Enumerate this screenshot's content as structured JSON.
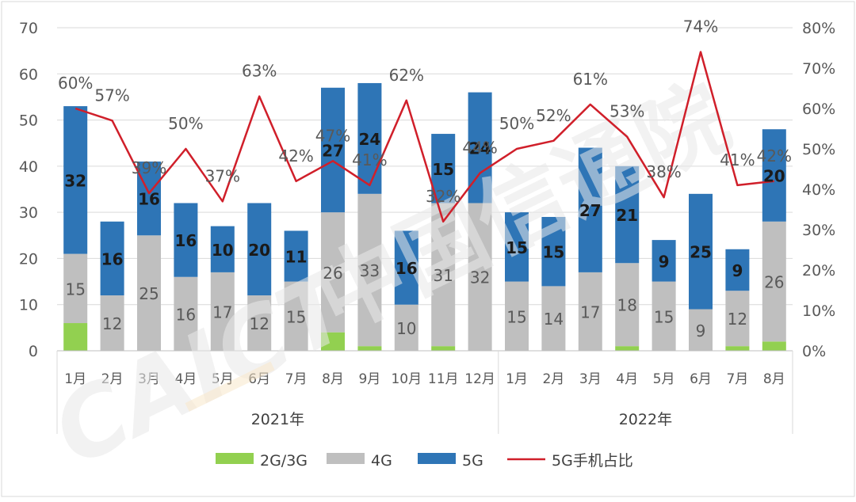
{
  "chart_data": {
    "type": "bar",
    "stacked": true,
    "categories": [
      "1月",
      "2月",
      "3月",
      "4月",
      "5月",
      "6月",
      "7月",
      "8月",
      "9月",
      "10月",
      "11月",
      "12月",
      "1月",
      "2月",
      "3月",
      "4月",
      "5月",
      "6月",
      "7月",
      "8月"
    ],
    "groups": [
      {
        "label": "2021年",
        "count": 12
      },
      {
        "label": "2022年",
        "count": 8
      }
    ],
    "series": [
      {
        "name": "2G/3G",
        "type": "bar",
        "color": "#92d050",
        "values": [
          6,
          0,
          0,
          0,
          0,
          0,
          0,
          4,
          1,
          0,
          1,
          0,
          0,
          0,
          0,
          1,
          0,
          0,
          1,
          2
        ]
      },
      {
        "name": "4G",
        "type": "bar",
        "color": "#bfbfbf",
        "values": [
          15,
          12,
          25,
          16,
          17,
          12,
          15,
          26,
          33,
          10,
          31,
          32,
          15,
          14,
          17,
          18,
          15,
          9,
          12,
          26
        ]
      },
      {
        "name": "5G",
        "type": "bar",
        "color": "#2e75b6",
        "values": [
          32,
          16,
          16,
          16,
          10,
          20,
          11,
          27,
          24,
          16,
          15,
          24,
          15,
          15,
          27,
          21,
          9,
          25,
          9,
          20
        ]
      },
      {
        "name": "5G手机占比",
        "type": "line",
        "axis": "right",
        "color": "#d01f2a",
        "values": [
          60,
          57,
          39,
          50,
          37,
          63,
          42,
          47,
          41,
          62,
          32,
          44,
          50,
          52,
          61,
          53,
          38,
          74,
          41,
          42
        ],
        "labels": [
          "60%",
          "57%",
          "39%",
          "50%",
          "37%",
          "63%",
          "42%",
          "47%",
          "41%",
          "62%",
          "32%",
          "44%",
          "50%",
          "52%",
          "61%",
          "53%",
          "38%",
          "74%",
          "41%",
          "42%"
        ]
      }
    ],
    "labels_4g": [
      "15",
      "12",
      "25",
      "16",
      "17",
      "12",
      "15",
      "26",
      "33",
      "10",
      "31",
      "32",
      "15",
      "14",
      "17",
      "18",
      "15",
      "9",
      "12",
      "26"
    ],
    "labels_5g": [
      "32",
      "16",
      "16",
      "16",
      "10",
      "20",
      "11",
      "27",
      "24",
      "16",
      "15",
      "24",
      "15",
      "15",
      "27",
      "21",
      "9",
      "25",
      "9",
      "20"
    ],
    "y_left": {
      "min": 0,
      "max": 70,
      "ticks": [
        "0",
        "10",
        "20",
        "30",
        "40",
        "50",
        "60",
        "70"
      ]
    },
    "y_right": {
      "min": 0,
      "max": 80,
      "ticks": [
        "0%",
        "10%",
        "20%",
        "30%",
        "40%",
        "50%",
        "60%",
        "70%",
        "80%"
      ]
    },
    "grid": true,
    "legend": {
      "position": "bottom",
      "items": [
        {
          "label": "2G/3G",
          "kind": "box",
          "color": "#92d050"
        },
        {
          "label": "4G",
          "kind": "box",
          "color": "#bfbfbf"
        },
        {
          "label": "5G",
          "kind": "box",
          "color": "#2e75b6"
        },
        {
          "label": "5G手机占比",
          "kind": "line",
          "color": "#d01f2a"
        }
      ]
    },
    "watermark": "CAICT 中国信通院"
  }
}
